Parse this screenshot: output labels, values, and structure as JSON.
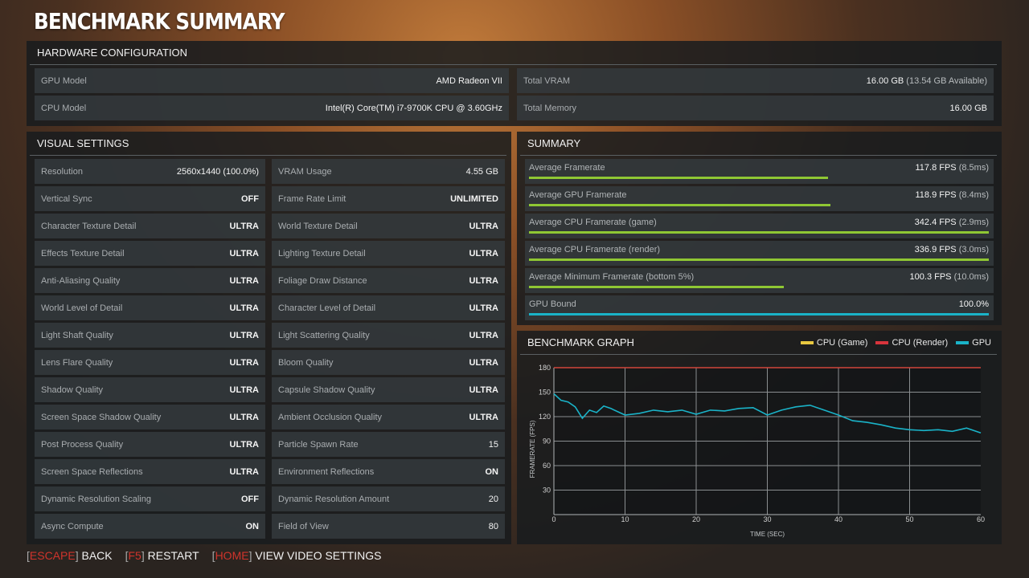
{
  "page_title": "BENCHMARK SUMMARY",
  "hardware": {
    "header": "HARDWARE CONFIGURATION",
    "gpu_label": "GPU Model",
    "gpu_value": "AMD Radeon VII",
    "cpu_label": "CPU Model",
    "cpu_value": "Intel(R) Core(TM) i7-9700K CPU @ 3.60GHz",
    "vram_label": "Total VRAM",
    "vram_value": "16.00 GB",
    "vram_available": "(13.54 GB Available)",
    "mem_label": "Total Memory",
    "mem_value": "16.00 GB"
  },
  "visual": {
    "header": "VISUAL SETTINGS",
    "left": [
      {
        "label": "Resolution",
        "value": "2560x1440 (100.0%)"
      },
      {
        "label": "Vertical Sync",
        "value": "OFF"
      },
      {
        "label": "Character Texture Detail",
        "value": "ULTRA"
      },
      {
        "label": "Effects Texture Detail",
        "value": "ULTRA"
      },
      {
        "label": "Anti-Aliasing Quality",
        "value": "ULTRA"
      },
      {
        "label": "World Level of Detail",
        "value": "ULTRA"
      },
      {
        "label": "Light Shaft Quality",
        "value": "ULTRA"
      },
      {
        "label": "Lens Flare Quality",
        "value": "ULTRA"
      },
      {
        "label": "Shadow Quality",
        "value": "ULTRA"
      },
      {
        "label": "Screen Space Shadow Quality",
        "value": "ULTRA"
      },
      {
        "label": "Post Process Quality",
        "value": "ULTRA"
      },
      {
        "label": "Screen Space Reflections",
        "value": "ULTRA"
      },
      {
        "label": "Dynamic Resolution Scaling",
        "value": "OFF"
      },
      {
        "label": "Async Compute",
        "value": "ON"
      }
    ],
    "right": [
      {
        "label": "VRAM Usage",
        "value": "4.55 GB"
      },
      {
        "label": "Frame Rate Limit",
        "value": "UNLIMITED"
      },
      {
        "label": "World Texture Detail",
        "value": "ULTRA"
      },
      {
        "label": "Lighting Texture Detail",
        "value": "ULTRA"
      },
      {
        "label": "Foliage Draw Distance",
        "value": "ULTRA"
      },
      {
        "label": "Character Level of Detail",
        "value": "ULTRA"
      },
      {
        "label": "Light Scattering Quality",
        "value": "ULTRA"
      },
      {
        "label": "Bloom Quality",
        "value": "ULTRA"
      },
      {
        "label": "Capsule Shadow Quality",
        "value": "ULTRA"
      },
      {
        "label": "Ambient Occlusion Quality",
        "value": "ULTRA"
      },
      {
        "label": "Particle Spawn Rate",
        "value": "15"
      },
      {
        "label": "Environment Reflections",
        "value": "ON"
      },
      {
        "label": "Dynamic Resolution Amount",
        "value": "20"
      },
      {
        "label": "Field of View",
        "value": "80"
      }
    ]
  },
  "summary": {
    "header": "SUMMARY",
    "items": [
      {
        "label": "Average Framerate",
        "value": "117.8 FPS",
        "paren": "(8.5ms)",
        "fill": 0.65,
        "color": "#8fc733"
      },
      {
        "label": "Average GPU Framerate",
        "value": "118.9 FPS",
        "paren": "(8.4ms)",
        "fill": 0.656,
        "color": "#8fc733"
      },
      {
        "label": "Average CPU Framerate (game)",
        "value": "342.4 FPS",
        "paren": "(2.9ms)",
        "fill": 1.0,
        "color": "#8fc733"
      },
      {
        "label": "Average CPU Framerate (render)",
        "value": "336.9 FPS",
        "paren": "(3.0ms)",
        "fill": 1.0,
        "color": "#8fc733"
      },
      {
        "label": "Average Minimum Framerate (bottom 5%)",
        "value": "100.3 FPS",
        "paren": "(10.0ms)",
        "fill": 0.555,
        "color": "#8fc733"
      },
      {
        "label": "GPU Bound",
        "value": "100.0%",
        "paren": "",
        "fill": 1.0,
        "color": "#1ab3c8"
      }
    ]
  },
  "graph": {
    "header": "BENCHMARK GRAPH",
    "legend": [
      {
        "label": "CPU (Game)",
        "color": "#e8c840"
      },
      {
        "label": "CPU (Render)",
        "color": "#d8343c"
      },
      {
        "label": "GPU",
        "color": "#1ab3c8"
      }
    ]
  },
  "chart_data": {
    "type": "line",
    "xlabel": "TIME (SEC)",
    "ylabel": "FRAMERATE (FPS)",
    "xlim": [
      0,
      60
    ],
    "ylim": [
      0,
      180
    ],
    "xticks": [
      0,
      10,
      20,
      30,
      40,
      50,
      60
    ],
    "yticks": [
      30,
      60,
      90,
      120,
      150,
      180
    ],
    "grid": true,
    "series": [
      {
        "name": "GPU",
        "color": "#1ab3c8",
        "x": [
          0,
          1,
          2,
          3,
          4,
          5,
          6,
          7,
          8,
          10,
          12,
          14,
          16,
          18,
          20,
          22,
          24,
          26,
          28,
          30,
          32,
          34,
          36,
          38,
          40,
          42,
          44,
          46,
          48,
          50,
          52,
          54,
          56,
          58,
          60
        ],
        "values": [
          148,
          140,
          138,
          132,
          118,
          128,
          125,
          133,
          130,
          122,
          124,
          128,
          126,
          128,
          123,
          128,
          127,
          130,
          131,
          122,
          128,
          132,
          134,
          128,
          122,
          115,
          113,
          110,
          106,
          104,
          103,
          104,
          102,
          106,
          100
        ]
      },
      {
        "name": "CPU (Render)",
        "color": "#d8343c",
        "x": [
          0,
          60
        ],
        "values": [
          180,
          180
        ]
      },
      {
        "name": "CPU (Game)",
        "color": "#e8c840",
        "x": [
          0,
          60
        ],
        "values": [
          180,
          180
        ]
      }
    ]
  },
  "footer": [
    {
      "key": "ESCAPE",
      "label": "BACK"
    },
    {
      "key": "F5",
      "label": "RESTART"
    },
    {
      "key": "HOME",
      "label": "VIEW VIDEO SETTINGS"
    }
  ]
}
